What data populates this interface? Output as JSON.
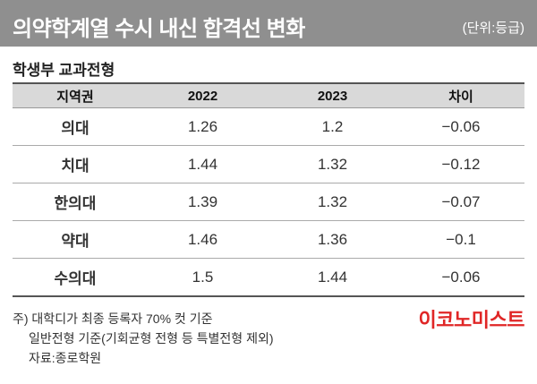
{
  "header": {
    "title": "의약학계열 수시 내신 합격선 변화",
    "unit": "(단위:등급)"
  },
  "subtitle": "학생부 교과전형",
  "table": {
    "columns": [
      "지역권",
      "2022",
      "2023",
      "차이"
    ],
    "rows": [
      {
        "region": "의대",
        "y2022": "1.26",
        "y2023": "1.2",
        "diff": "−0.06"
      },
      {
        "region": "치대",
        "y2022": "1.44",
        "y2023": "1.32",
        "diff": "−0.12"
      },
      {
        "region": "한의대",
        "y2022": "1.39",
        "y2023": "1.32",
        "diff": "−0.07"
      },
      {
        "region": "약대",
        "y2022": "1.46",
        "y2023": "1.36",
        "diff": "−0.1"
      },
      {
        "region": "수의대",
        "y2022": "1.5",
        "y2023": "1.44",
        "diff": "−0.06"
      }
    ]
  },
  "notes": {
    "line1": "주) 대학디가 최종 등록자 70% 컷 기준",
    "line2": "일반전형 기준(기회균형 전형 등 특별전형 제외)",
    "line3": "자료:종로학원"
  },
  "logo": "이코노미스트",
  "colors": {
    "header_bg": "#8f8f8f",
    "highlight": "#e0413b",
    "logo": "#e02626"
  }
}
